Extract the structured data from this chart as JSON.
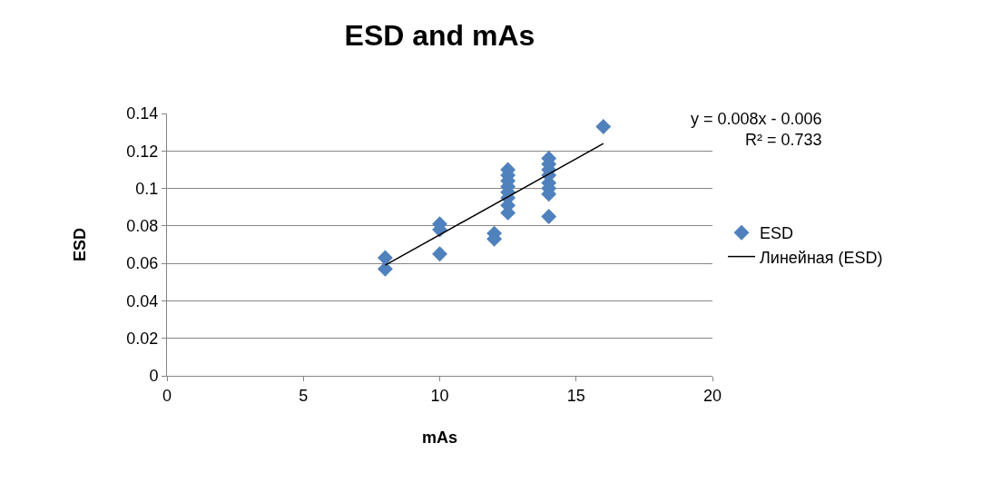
{
  "chart_data": {
    "type": "scatter",
    "title": "ESD and mAs",
    "xlabel": "mAs",
    "ylabel": "ESD",
    "xlim": [
      0,
      20
    ],
    "xticks": [
      0,
      5,
      10,
      15,
      20
    ],
    "ylim": [
      0,
      0.14
    ],
    "yticks": [
      0,
      0.02,
      0.04,
      0.06,
      0.08,
      0.1,
      0.12,
      0.14
    ],
    "grid": "y",
    "legend": "right",
    "marker": "diamond",
    "annotations": [
      "y = 0.008x - 0.006\nR² = 0.733"
    ],
    "series": [
      {
        "name": "ESD",
        "color": "#4f81bd",
        "x": [
          8,
          8,
          10,
          10,
          10,
          12,
          12,
          12.5,
          12.5,
          12.5,
          12.5,
          12.5,
          12.5,
          12.5,
          12.5,
          14,
          14,
          14,
          14,
          14,
          14,
          14,
          14,
          16
        ],
        "values": [
          0.063,
          0.057,
          0.081,
          0.078,
          0.065,
          0.076,
          0.073,
          0.11,
          0.107,
          0.104,
          0.101,
          0.098,
          0.095,
          0.091,
          0.087,
          0.116,
          0.113,
          0.11,
          0.107,
          0.103,
          0.1,
          0.097,
          0.085,
          0.133
        ]
      },
      {
        "name": "Линейная (ESD)",
        "type": "line",
        "color": "#000000",
        "marker": "none",
        "line_style": "solid",
        "x": [
          8,
          16
        ],
        "values": [
          0.059,
          0.124
        ]
      }
    ]
  }
}
